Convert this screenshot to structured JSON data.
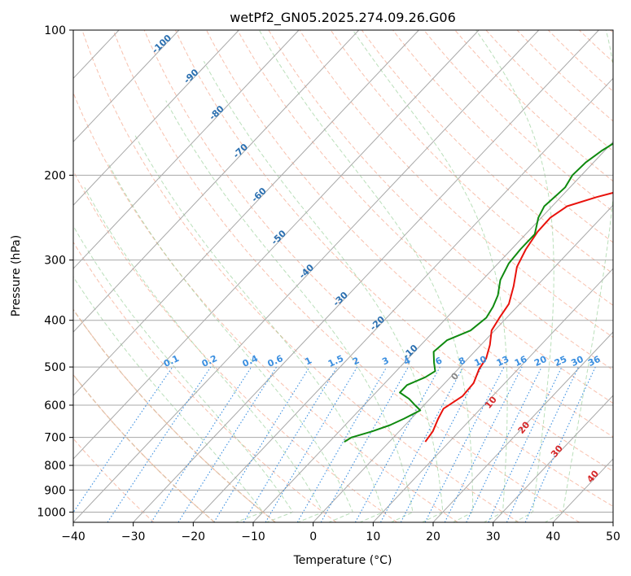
{
  "chart_data": {
    "type": "line",
    "title": "wetPf2_GN05.2025.274.09.26.G06",
    "xlabel": "Temperature (°C)",
    "ylabel": "Pressure (hPa)",
    "xlim": [
      -40,
      50
    ],
    "ylim": [
      1050,
      100
    ],
    "x_ticks": [
      -40,
      -30,
      -20,
      -10,
      0,
      10,
      20,
      30,
      40,
      50
    ],
    "x_tick_labels": [
      "−40",
      "−30",
      "−20",
      "−10",
      "0",
      "10",
      "20",
      "30",
      "40",
      "50"
    ],
    "y_ticks": [
      100,
      200,
      300,
      400,
      500,
      600,
      700,
      800,
      900,
      1000
    ],
    "y_tick_labels": [
      "100",
      "200",
      "300",
      "400",
      "500",
      "600",
      "700",
      "800",
      "900",
      "1000"
    ],
    "skew_deg_per_decade": 76,
    "series": [
      {
        "name": "Temperature",
        "color": "#e8120c",
        "points": [
          [
            6,
            715
          ],
          [
            5.6,
            680
          ],
          [
            4.5,
            640
          ],
          [
            3.8,
            610
          ],
          [
            5,
            575
          ],
          [
            4.8,
            540
          ],
          [
            3.5,
            505
          ],
          [
            3,
            480
          ],
          [
            1.5,
            450
          ],
          [
            -0.5,
            420
          ],
          [
            -1.2,
            395
          ],
          [
            -1.8,
            370
          ],
          [
            -3.8,
            340
          ],
          [
            -6.3,
            310
          ],
          [
            -7.6,
            285
          ],
          [
            -8.4,
            262
          ],
          [
            -8.5,
            245
          ],
          [
            -7.5,
            232
          ],
          [
            -4,
            222
          ],
          [
            1.5,
            210
          ],
          [
            5.5,
            198
          ],
          [
            7.5,
            188
          ],
          [
            9,
            178
          ],
          [
            10.5,
            169
          ],
          [
            13,
            160
          ],
          [
            16.5,
            151
          ],
          [
            19,
            142
          ],
          [
            21.5,
            133
          ],
          [
            23.5,
            124
          ],
          [
            25.2,
            116
          ],
          [
            28,
            108
          ],
          [
            30,
            100
          ]
        ]
      },
      {
        "name": "Dewpoint",
        "color": "#0f8a0f",
        "points": [
          [
            -7.5,
            715
          ],
          [
            -7,
            700
          ],
          [
            -4.5,
            680
          ],
          [
            -2.5,
            660
          ],
          [
            -1.2,
            640
          ],
          [
            0.2,
            615
          ],
          [
            -1.5,
            600
          ],
          [
            -3.5,
            582
          ],
          [
            -6,
            565
          ],
          [
            -6,
            545
          ],
          [
            -4.2,
            525
          ],
          [
            -3.5,
            510
          ],
          [
            -5,
            490
          ],
          [
            -6.8,
            465
          ],
          [
            -6.4,
            440
          ],
          [
            -4,
            420
          ],
          [
            -3.4,
            395
          ],
          [
            -4,
            375
          ],
          [
            -5,
            355
          ],
          [
            -7,
            330
          ],
          [
            -8.2,
            305
          ],
          [
            -8.5,
            285
          ],
          [
            -8.5,
            265
          ],
          [
            -10.5,
            245
          ],
          [
            -11.3,
            232
          ],
          [
            -11,
            220
          ],
          [
            -10.8,
            212
          ],
          [
            -11.5,
            200
          ],
          [
            -11.3,
            188
          ],
          [
            -10.5,
            178
          ],
          [
            -9,
            167
          ],
          [
            -8.7,
            158
          ],
          [
            -9.5,
            151
          ],
          [
            -11.5,
            145
          ],
          [
            -12,
            140
          ],
          [
            -11.2,
            134
          ],
          [
            -9.5,
            129
          ],
          [
            -8.3,
            124
          ],
          [
            -7.5,
            118
          ],
          [
            -7,
            112
          ],
          [
            -6.3,
            106
          ],
          [
            -5.8,
            100
          ]
        ]
      }
    ],
    "isotherm_labels": [
      {
        "t": -100,
        "text": "-100"
      },
      {
        "t": -90,
        "text": "-90"
      },
      {
        "t": -80,
        "text": "-80"
      },
      {
        "t": -70,
        "text": "-70"
      },
      {
        "t": -60,
        "text": "-60"
      },
      {
        "t": -50,
        "text": "-50"
      },
      {
        "t": -40,
        "text": "-40"
      },
      {
        "t": -30,
        "text": "-30"
      },
      {
        "t": -20,
        "text": "-20"
      },
      {
        "t": -10,
        "text": "-10"
      }
    ],
    "mixing_ratio_labels": [
      {
        "w": 0.1,
        "text": "0.1"
      },
      {
        "w": 0.2,
        "text": "0.2"
      },
      {
        "w": 0.4,
        "text": "0.4"
      },
      {
        "w": 0.6,
        "text": "0.6"
      },
      {
        "w": 1,
        "text": "1"
      },
      {
        "w": 1.5,
        "text": "1.5"
      },
      {
        "w": 2,
        "text": "2"
      },
      {
        "w": 3,
        "text": "3"
      },
      {
        "w": 4,
        "text": "4"
      },
      {
        "w": 6,
        "text": "6"
      },
      {
        "w": 8,
        "text": "8"
      },
      {
        "w": 10,
        "text": "10"
      },
      {
        "w": 13,
        "text": "13"
      },
      {
        "w": 16,
        "text": "16"
      },
      {
        "w": 20,
        "text": "20"
      },
      {
        "w": 25,
        "text": "25"
      },
      {
        "w": 30,
        "text": "30"
      },
      {
        "w": 36,
        "text": "36"
      }
    ],
    "moist_adiabat_labels": [
      {
        "t": 0,
        "text": "0"
      },
      {
        "t": 10,
        "text": "10"
      },
      {
        "t": 20,
        "text": "20"
      },
      {
        "t": 30,
        "text": "30"
      },
      {
        "t": 40,
        "text": "40"
      }
    ]
  }
}
